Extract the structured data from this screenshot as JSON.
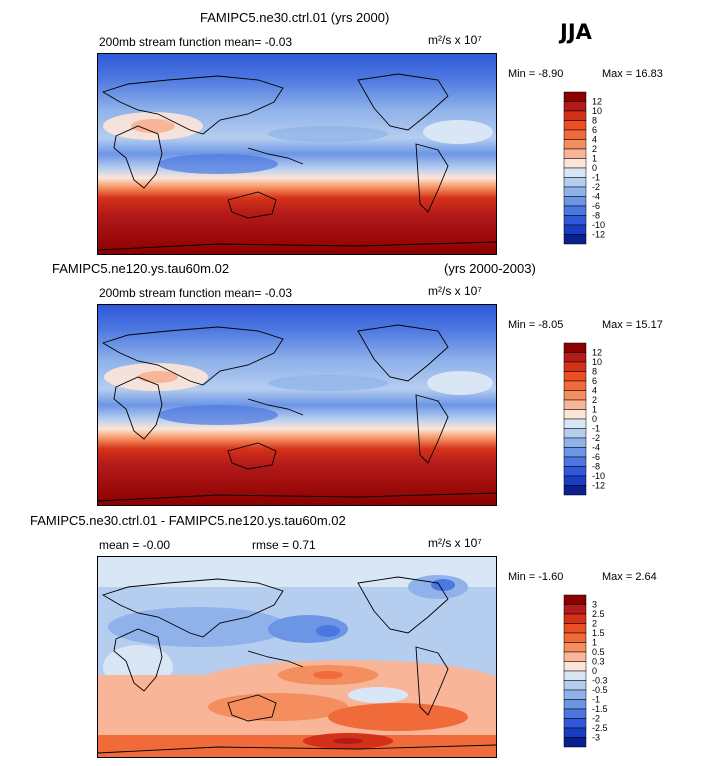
{
  "season": "JJA",
  "panels": [
    {
      "title": "FAMIPC5.ne30.ctrl.01 (yrs 2000)",
      "title_right": "",
      "subtitle": "200mb stream function  mean=  -0.03",
      "units": "m²/s x 10⁷",
      "min": "Min = -8.90",
      "max": "Max = 16.83"
    },
    {
      "title": "FAMIPC5.ne120.ys.tau60m.02",
      "title_right": "(yrs 2000-2003)",
      "subtitle": "200mb stream function  mean=  -0.03",
      "units": "m²/s x 10⁷",
      "min": "Min = -8.05",
      "max": "Max = 15.17"
    },
    {
      "title": "FAMIPC5.ne30.ctrl.01 - FAMIPC5.ne120.ys.tau60m.02",
      "title_right": "",
      "subtitle": "mean =  -0.00",
      "subtitle2": "rmse =   0.71",
      "units": "m²/s x 10⁷",
      "min": "Min = -1.60",
      "max": "Max = 2.64"
    }
  ],
  "chart_data": [
    {
      "type": "heatmap",
      "title": "FAMIPC5.ne30.ctrl.01 (yrs 2000)",
      "variable": "200mb stream function",
      "mean": -0.03,
      "min": -8.9,
      "max": 16.83,
      "colorbar": {
        "levels": [
          "12",
          "10",
          "8",
          "6",
          "4",
          "2",
          "1",
          "0",
          "-1",
          "-2",
          "-4",
          "-6",
          "-8",
          "-10",
          "-12"
        ],
        "colors": [
          "#8b0000",
          "#b41a1a",
          "#d43218",
          "#e94f22",
          "#f06a3a",
          "#f48e5e",
          "#f8b597",
          "#fde6d8",
          "#d8e6f6",
          "#b5cdef",
          "#8fb2ea",
          "#6c95e6",
          "#4c77e0",
          "#2f59d8",
          "#1a3cc2",
          "#0a1f90"
        ]
      }
    },
    {
      "type": "heatmap",
      "title": "FAMIPC5.ne120.ys.tau60m.02 (yrs 2000-2003)",
      "variable": "200mb stream function",
      "mean": -0.03,
      "min": -8.05,
      "max": 15.17,
      "colorbar": {
        "levels": [
          "12",
          "10",
          "8",
          "6",
          "4",
          "2",
          "1",
          "0",
          "-1",
          "-2",
          "-4",
          "-6",
          "-8",
          "-10",
          "-12"
        ],
        "colors": [
          "#8b0000",
          "#b41a1a",
          "#d43218",
          "#e94f22",
          "#f06a3a",
          "#f48e5e",
          "#f8b597",
          "#fde6d8",
          "#d8e6f6",
          "#b5cdef",
          "#8fb2ea",
          "#6c95e6",
          "#4c77e0",
          "#2f59d8",
          "#1a3cc2",
          "#0a1f90"
        ]
      }
    },
    {
      "type": "heatmap",
      "title": "FAMIPC5.ne30.ctrl.01 - FAMIPC5.ne120.ys.tau60m.02",
      "variable": "difference",
      "mean": -0.0,
      "rmse": 0.71,
      "min": -1.6,
      "max": 2.64,
      "colorbar": {
        "levels": [
          "3",
          "2.5",
          "2",
          "1.5",
          "1",
          "0.5",
          "0.3",
          "0",
          "-0.3",
          "-0.5",
          "-1",
          "-1.5",
          "-2",
          "-2.5",
          "-3"
        ],
        "colors": [
          "#8b0000",
          "#b41a1a",
          "#d43218",
          "#e94f22",
          "#f06a3a",
          "#f48e5e",
          "#f8b597",
          "#fde6d8",
          "#d8e6f6",
          "#b5cdef",
          "#8fb2ea",
          "#6c95e6",
          "#4c77e0",
          "#2f59d8",
          "#1a3cc2",
          "#0a1f90"
        ]
      }
    }
  ]
}
